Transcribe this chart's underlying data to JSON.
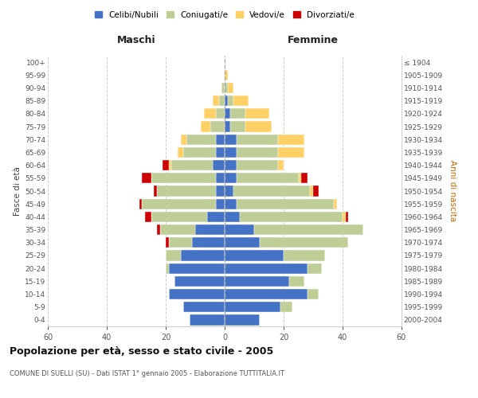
{
  "age_groups": [
    "0-4",
    "5-9",
    "10-14",
    "15-19",
    "20-24",
    "25-29",
    "30-34",
    "35-39",
    "40-44",
    "45-49",
    "50-54",
    "55-59",
    "60-64",
    "65-69",
    "70-74",
    "75-79",
    "80-84",
    "85-89",
    "90-94",
    "95-99",
    "100+"
  ],
  "birth_years": [
    "2000-2004",
    "1995-1999",
    "1990-1994",
    "1985-1989",
    "1980-1984",
    "1975-1979",
    "1970-1974",
    "1965-1969",
    "1960-1964",
    "1955-1959",
    "1950-1954",
    "1945-1949",
    "1940-1944",
    "1935-1939",
    "1930-1934",
    "1925-1929",
    "1920-1924",
    "1915-1919",
    "1910-1914",
    "1905-1909",
    "≤ 1904"
  ],
  "colors": {
    "celibi": "#4472C4",
    "coniugati": "#BFCD96",
    "vedovi": "#FFD065",
    "divorziati": "#CC0000"
  },
  "maschi": {
    "celibi": [
      12,
      14,
      19,
      17,
      19,
      15,
      11,
      10,
      6,
      3,
      3,
      3,
      4,
      3,
      3,
      0,
      0,
      0,
      0,
      0,
      0
    ],
    "coniugati": [
      0,
      0,
      0,
      0,
      1,
      5,
      8,
      12,
      19,
      25,
      20,
      22,
      14,
      11,
      10,
      5,
      3,
      2,
      1,
      0,
      0
    ],
    "vedovi": [
      0,
      0,
      0,
      0,
      0,
      0,
      0,
      0,
      0,
      0,
      0,
      0,
      1,
      2,
      2,
      3,
      4,
      2,
      0,
      0,
      0
    ],
    "divorziati": [
      0,
      0,
      0,
      0,
      0,
      0,
      1,
      1,
      2,
      1,
      1,
      3,
      2,
      0,
      0,
      0,
      0,
      0,
      0,
      0,
      0
    ]
  },
  "femmine": {
    "celibi": [
      12,
      19,
      28,
      22,
      28,
      20,
      12,
      10,
      5,
      4,
      3,
      4,
      4,
      4,
      4,
      2,
      2,
      1,
      0,
      0,
      0
    ],
    "coniugati": [
      0,
      4,
      4,
      5,
      5,
      14,
      30,
      37,
      35,
      33,
      26,
      21,
      14,
      14,
      14,
      5,
      5,
      2,
      1,
      0,
      0
    ],
    "vedovi": [
      0,
      0,
      0,
      0,
      0,
      0,
      0,
      0,
      1,
      1,
      1,
      1,
      2,
      9,
      9,
      9,
      8,
      5,
      2,
      1,
      0
    ],
    "divorziati": [
      0,
      0,
      0,
      0,
      0,
      0,
      0,
      0,
      1,
      0,
      2,
      2,
      0,
      0,
      0,
      0,
      0,
      0,
      0,
      0,
      0
    ]
  },
  "title": "Popolazione per età, sesso e stato civile - 2005",
  "subtitle": "COMUNE DI SUELLI (SU) - Dati ISTAT 1° gennaio 2005 - Elaborazione TUTTITALIA.IT",
  "xlabel_left": "Maschi",
  "xlabel_right": "Femmine",
  "ylabel_left": "Fasce di età",
  "ylabel_right": "Anni di nascita",
  "xlim": 60,
  "legend_labels": [
    "Celibi/Nubili",
    "Coniugati/e",
    "Vedovi/e",
    "Divorziati/e"
  ],
  "bg_color": "#FFFFFF",
  "grid_color": "#CCCCCC"
}
